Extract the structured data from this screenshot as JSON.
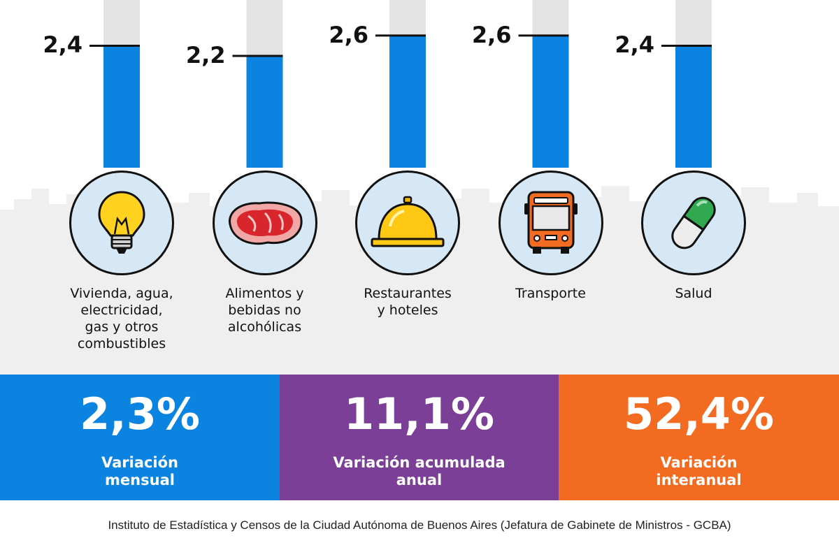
{
  "chart_data": {
    "type": "bar",
    "title": "",
    "categories": [
      "Vivienda, agua,\nelectricidad,\ngas y otros\ncombustibles",
      "Alimentos y\nbebidas no\nalcohólicas",
      "Restaurantes\ny hoteles",
      "Transporte",
      "Salud"
    ],
    "values": [
      2.4,
      2.2,
      2.6,
      2.6,
      2.4
    ],
    "value_labels": [
      "2,4",
      "2,2",
      "2,6",
      "2,6",
      "2,4"
    ],
    "icons": [
      "light-bulb-icon",
      "meat-steak-icon",
      "service-bell-icon",
      "bus-icon",
      "pill-icon"
    ],
    "ylim": [
      0,
      3.3
    ],
    "bar_color": "#0a84e0",
    "track_color": "#e3e3e3"
  },
  "stats": [
    {
      "value": "2,3%",
      "label": "Variación\nmensual",
      "color": "#0a84e0"
    },
    {
      "value": "11,1%",
      "label": "Variación acumulada\nanual",
      "color": "#7b3f98"
    },
    {
      "value": "52,4%",
      "label": "Variación\ninteranual",
      "color": "#f26b21"
    }
  ],
  "source": "Instituto de Estadística y Censos de la Ciudad Autónoma de Buenos Aires (Jefatura de Gabinete de Ministros - GCBA)"
}
